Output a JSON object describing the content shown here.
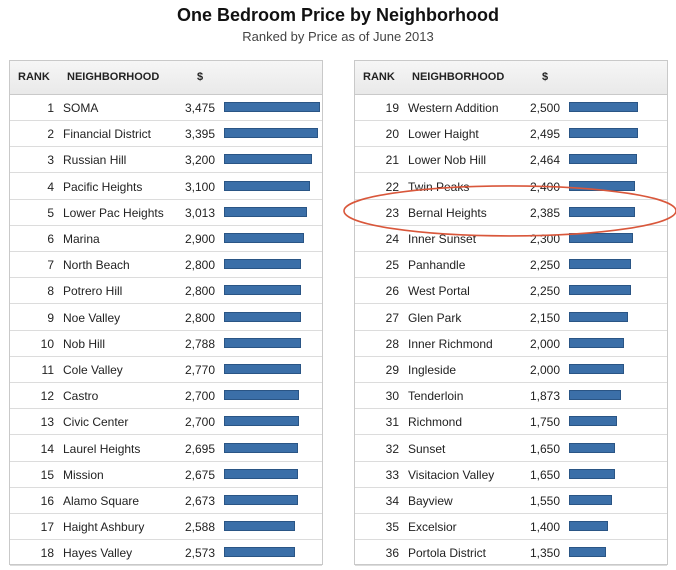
{
  "chart_data": {
    "type": "bar",
    "title": "One Bedroom Price by Neighborhood",
    "subtitle": "Ranked by Price as of June 2013",
    "columns": {
      "rank": "RANK",
      "neighborhood": "NEIGHBORHOOD",
      "price": "$"
    },
    "rows": [
      {
        "rank": "1",
        "neighborhood": "SOMA",
        "price_label": "3,475",
        "value": 3475
      },
      {
        "rank": "2",
        "neighborhood": "Financial District",
        "price_label": "3,395",
        "value": 3395
      },
      {
        "rank": "3",
        "neighborhood": "Russian Hill",
        "price_label": "3,200",
        "value": 3200
      },
      {
        "rank": "4",
        "neighborhood": "Pacific Heights",
        "price_label": "3,100",
        "value": 3100
      },
      {
        "rank": "5",
        "neighborhood": "Lower Pac Heights",
        "price_label": "3,013",
        "value": 3013
      },
      {
        "rank": "6",
        "neighborhood": "Marina",
        "price_label": "2,900",
        "value": 2900
      },
      {
        "rank": "7",
        "neighborhood": "North Beach",
        "price_label": "2,800",
        "value": 2800
      },
      {
        "rank": "8",
        "neighborhood": "Potrero Hill",
        "price_label": "2,800",
        "value": 2800
      },
      {
        "rank": "9",
        "neighborhood": "Noe Valley",
        "price_label": "2,800",
        "value": 2800
      },
      {
        "rank": "10",
        "neighborhood": "Nob Hill",
        "price_label": "2,788",
        "value": 2788
      },
      {
        "rank": "11",
        "neighborhood": "Cole Valley",
        "price_label": "2,770",
        "value": 2770
      },
      {
        "rank": "12",
        "neighborhood": "Castro",
        "price_label": "2,700",
        "value": 2700
      },
      {
        "rank": "13",
        "neighborhood": "Civic Center",
        "price_label": "2,700",
        "value": 2700
      },
      {
        "rank": "14",
        "neighborhood": "Laurel Heights",
        "price_label": "2,695",
        "value": 2695
      },
      {
        "rank": "15",
        "neighborhood": "Mission",
        "price_label": "2,675",
        "value": 2675
      },
      {
        "rank": "16",
        "neighborhood": "Alamo Square",
        "price_label": "2,673",
        "value": 2673
      },
      {
        "rank": "17",
        "neighborhood": "Haight Ashbury",
        "price_label": "2,588",
        "value": 2588
      },
      {
        "rank": "18",
        "neighborhood": "Hayes Valley",
        "price_label": "2,573",
        "value": 2573
      },
      {
        "rank": "19",
        "neighborhood": "Western Addition",
        "price_label": "2,500",
        "value": 2500
      },
      {
        "rank": "20",
        "neighborhood": "Lower Haight",
        "price_label": "2,495",
        "value": 2495
      },
      {
        "rank": "21",
        "neighborhood": "Lower Nob Hill",
        "price_label": "2,464",
        "value": 2464
      },
      {
        "rank": "22",
        "neighborhood": "Twin Peaks",
        "price_label": "2,400",
        "value": 2400
      },
      {
        "rank": "23",
        "neighborhood": "Bernal Heights",
        "price_label": "2,385",
        "value": 2385,
        "highlighted": true
      },
      {
        "rank": "24",
        "neighborhood": "Inner Sunset",
        "price_label": "2,300",
        "value": 2300
      },
      {
        "rank": "25",
        "neighborhood": "Panhandle",
        "price_label": "2,250",
        "value": 2250
      },
      {
        "rank": "26",
        "neighborhood": "West Portal",
        "price_label": "2,250",
        "value": 2250
      },
      {
        "rank": "27",
        "neighborhood": "Glen Park",
        "price_label": "2,150",
        "value": 2150
      },
      {
        "rank": "28",
        "neighborhood": "Inner Richmond",
        "price_label": "2,000",
        "value": 2000
      },
      {
        "rank": "29",
        "neighborhood": "Ingleside",
        "price_label": "2,000",
        "value": 2000
      },
      {
        "rank": "30",
        "neighborhood": "Tenderloin",
        "price_label": "1,873",
        "value": 1873
      },
      {
        "rank": "31",
        "neighborhood": "Richmond",
        "price_label": "1,750",
        "value": 1750
      },
      {
        "rank": "32",
        "neighborhood": "Sunset",
        "price_label": "1,650",
        "value": 1650
      },
      {
        "rank": "33",
        "neighborhood": "Visitacion Valley",
        "price_label": "1,650",
        "value": 1650
      },
      {
        "rank": "34",
        "neighborhood": "Bayview",
        "price_label": "1,550",
        "value": 1550
      },
      {
        "rank": "35",
        "neighborhood": "Excelsior",
        "price_label": "1,400",
        "value": 1400
      },
      {
        "rank": "36",
        "neighborhood": "Portola District",
        "price_label": "1,350",
        "value": 1350
      }
    ],
    "bar_color": "#3b6fa8",
    "highlight_color": "#d9573b",
    "xlim": [
      0,
      3475
    ]
  }
}
